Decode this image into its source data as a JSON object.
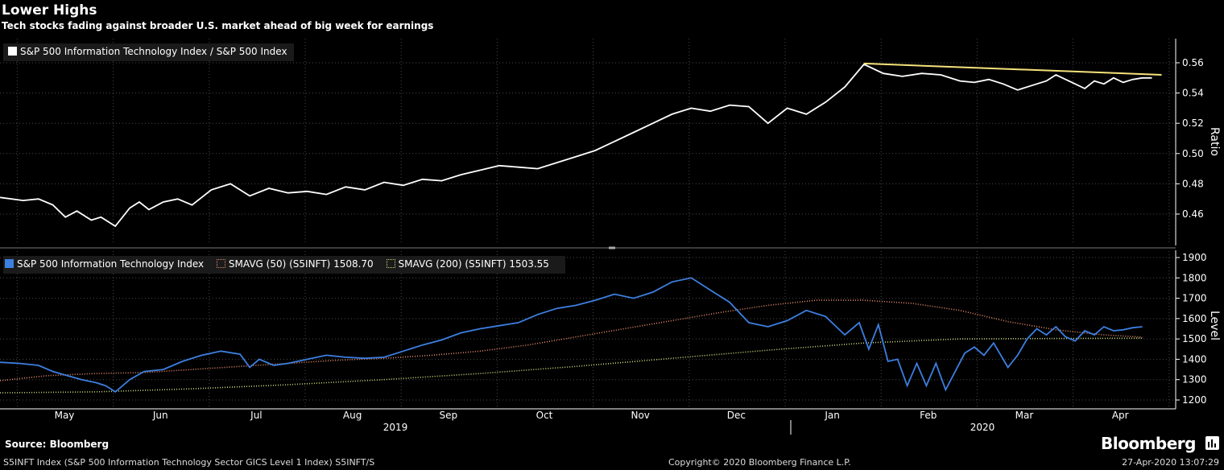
{
  "header": {
    "title": "Lower Highs",
    "subtitle": "Tech stocks fading against broader U.S. market ahead of big week for earnings"
  },
  "legend_top": {
    "label": "S&P 500 Information Technology Index / S&P 500 Index"
  },
  "legend_bottom": {
    "items": [
      {
        "label": "S&P 500 Information Technology Index"
      },
      {
        "label": "SMAVG (50) (S5INFT) 1508.70"
      },
      {
        "label": "SMAVG (200) (S5INFT) 1503.55"
      }
    ]
  },
  "footer": {
    "source": "Source: Bloomberg",
    "ticker": "S5INFT Index (S&P 500 Information Technology Sector GICS Level 1 Index) S5INFT/S",
    "copyright": "Copyright© 2020 Bloomberg Finance L.P.",
    "timestamp": "27-Apr-2020 13:07:29",
    "brand": "Bloomberg"
  },
  "colors": {
    "ratio_line": "#ffffff",
    "trend_line": "#f5e27a",
    "price_line": "#3d7fe0",
    "sma50": "#e48a6a",
    "sma200": "#c8d87a",
    "grid": "#4a4a4a"
  },
  "chart_data": [
    {
      "type": "line",
      "name": "ratio-panel",
      "ylabel": "Ratio",
      "ylim": [
        0.44,
        0.57
      ],
      "yticks": [
        "0.46",
        "0.48",
        "0.50",
        "0.52",
        "0.54",
        "0.56"
      ],
      "series": [
        {
          "name": "S&P 500 Information Technology Index / S&P 500 Index",
          "x": [
            0.0,
            0.24,
            0.4,
            0.55,
            0.68,
            0.8,
            0.95,
            1.05,
            1.2,
            1.35,
            1.45,
            1.55,
            1.7,
            1.85,
            2.0,
            2.2,
            2.4,
            2.6,
            2.8,
            3.0,
            3.2,
            3.4,
            3.6,
            3.8,
            4.0,
            4.2,
            4.4,
            4.6,
            4.8,
            5.0,
            5.2,
            5.4,
            5.6,
            5.8,
            6.0,
            6.2,
            6.4,
            6.6,
            6.8,
            7.0,
            7.2,
            7.4,
            7.6,
            7.8,
            8.0,
            8.2,
            8.4,
            8.6,
            8.8,
            9.0,
            9.2,
            9.4,
            9.6,
            9.8,
            10.0,
            10.15,
            10.3,
            10.45,
            10.6,
            10.75,
            10.9,
            11.0,
            11.1,
            11.2,
            11.3,
            11.4,
            11.5,
            11.6,
            11.7,
            11.8,
            11.9,
            12.0
          ],
          "values": [
            0.471,
            0.469,
            0.47,
            0.466,
            0.458,
            0.462,
            0.456,
            0.458,
            0.452,
            0.464,
            0.468,
            0.463,
            0.468,
            0.47,
            0.466,
            0.476,
            0.48,
            0.472,
            0.477,
            0.474,
            0.475,
            0.473,
            0.478,
            0.476,
            0.481,
            0.479,
            0.483,
            0.482,
            0.486,
            0.489,
            0.492,
            0.491,
            0.49,
            0.494,
            0.498,
            0.502,
            0.508,
            0.514,
            0.52,
            0.526,
            0.53,
            0.528,
            0.532,
            0.531,
            0.52,
            0.53,
            0.526,
            0.534,
            0.544,
            0.559,
            0.553,
            0.551,
            0.553,
            0.552,
            0.548,
            0.547,
            0.549,
            0.546,
            0.542,
            0.545,
            0.548,
            0.552,
            0.549,
            0.546,
            0.543,
            0.548,
            0.546,
            0.55,
            0.547,
            0.549,
            0.55,
            0.55
          ]
        },
        {
          "name": "trend",
          "x": [
            9.0,
            12.1
          ],
          "values": [
            0.5595,
            0.552
          ]
        }
      ]
    },
    {
      "type": "line",
      "name": "level-panel",
      "ylabel": "Level",
      "ylim": [
        1150,
        1950
      ],
      "yticks": [
        "1200",
        "1300",
        "1400",
        "1500",
        "1600",
        "1700",
        "1800",
        "1900"
      ],
      "xlabels": [
        "May",
        "Jun",
        "Jul",
        "Aug",
        "Sep",
        "Oct",
        "Nov",
        "Dec",
        "Jan",
        "Feb",
        "Mar",
        "Apr"
      ],
      "years": [
        "2019",
        "2020"
      ],
      "series": [
        {
          "name": "S&P 500 Information Technology Index",
          "x": [
            0.0,
            0.2,
            0.4,
            0.55,
            0.7,
            0.85,
            1.0,
            1.1,
            1.2,
            1.35,
            1.5,
            1.7,
            1.9,
            2.1,
            2.3,
            2.5,
            2.6,
            2.7,
            2.85,
            3.0,
            3.2,
            3.4,
            3.6,
            3.8,
            4.0,
            4.2,
            4.4,
            4.6,
            4.8,
            5.0,
            5.2,
            5.4,
            5.6,
            5.8,
            6.0,
            6.2,
            6.4,
            6.6,
            6.8,
            7.0,
            7.2,
            7.4,
            7.6,
            7.8,
            8.0,
            8.2,
            8.4,
            8.6,
            8.8,
            8.95,
            9.05,
            9.15,
            9.25,
            9.35,
            9.45,
            9.55,
            9.65,
            9.75,
            9.85,
            9.95,
            10.05,
            10.15,
            10.25,
            10.35,
            10.5,
            10.6,
            10.7,
            10.8,
            10.9,
            11.0,
            11.1,
            11.2,
            11.3,
            11.4,
            11.5,
            11.6,
            11.7,
            11.8,
            11.9
          ],
          "values": [
            1385,
            1380,
            1370,
            1340,
            1320,
            1300,
            1285,
            1270,
            1240,
            1300,
            1340,
            1350,
            1390,
            1420,
            1440,
            1425,
            1360,
            1400,
            1370,
            1380,
            1400,
            1420,
            1410,
            1405,
            1410,
            1440,
            1470,
            1495,
            1530,
            1550,
            1565,
            1580,
            1620,
            1650,
            1665,
            1690,
            1720,
            1700,
            1730,
            1780,
            1800,
            1740,
            1680,
            1580,
            1560,
            1590,
            1640,
            1610,
            1520,
            1580,
            1450,
            1570,
            1390,
            1400,
            1270,
            1380,
            1270,
            1380,
            1250,
            1340,
            1430,
            1460,
            1420,
            1480,
            1360,
            1420,
            1500,
            1550,
            1520,
            1560,
            1510,
            1490,
            1540,
            1520,
            1560,
            1540,
            1545,
            1555,
            1560
          ]
        },
        {
          "name": "SMAVG (50) (S5INFT) 1508.70",
          "x": [
            0.0,
            0.5,
            1.0,
            1.5,
            2.0,
            2.5,
            3.0,
            3.5,
            4.0,
            4.5,
            5.0,
            5.5,
            6.0,
            6.5,
            7.0,
            7.5,
            8.0,
            8.5,
            9.0,
            9.5,
            10.0,
            10.5,
            11.0,
            11.5,
            11.9
          ],
          "values": [
            1295,
            1320,
            1330,
            1335,
            1350,
            1365,
            1380,
            1395,
            1405,
            1420,
            1440,
            1470,
            1510,
            1550,
            1590,
            1630,
            1665,
            1690,
            1690,
            1675,
            1640,
            1585,
            1545,
            1520,
            1508.7
          ]
        },
        {
          "name": "SMAVG (200) (S5INFT) 1503.55",
          "x": [
            0.0,
            1.0,
            2.0,
            3.0,
            4.0,
            5.0,
            6.0,
            7.0,
            8.0,
            9.0,
            10.0,
            11.0,
            11.9
          ],
          "values": [
            1235,
            1240,
            1255,
            1275,
            1300,
            1330,
            1365,
            1405,
            1445,
            1480,
            1500,
            1502,
            1503.55
          ]
        }
      ]
    }
  ]
}
